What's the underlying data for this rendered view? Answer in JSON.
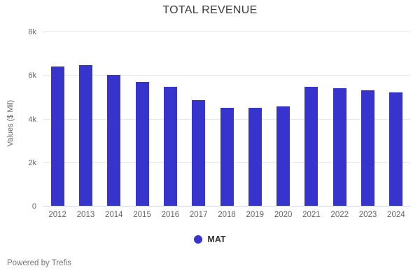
{
  "chart": {
    "title": "TOTAL REVENUE",
    "ylabel": "Values ($ Mil)",
    "legend_label": "MAT",
    "accent_color": "#3733cd",
    "gridline_color": "#e6e6e6",
    "axis_line_color": "#ccd6eb"
  },
  "chart_data": {
    "type": "bar",
    "title": "TOTAL REVENUE",
    "xlabel": "",
    "ylabel": "Values ($ Mil)",
    "categories": [
      "2012",
      "2013",
      "2014",
      "2015",
      "2016",
      "2017",
      "2018",
      "2019",
      "2020",
      "2021",
      "2022",
      "2023",
      "2024"
    ],
    "series": [
      {
        "name": "MAT",
        "color": "#3733cd",
        "values": [
          6400,
          6450,
          6000,
          5700,
          5450,
          4850,
          4500,
          4500,
          4550,
          5450,
          5400,
          5300,
          5200
        ]
      }
    ],
    "ylim": [
      0,
      8000
    ],
    "yticks": [
      {
        "value": 0,
        "label": "0"
      },
      {
        "value": 2000,
        "label": "2k"
      },
      {
        "value": 4000,
        "label": "4k"
      },
      {
        "value": 6000,
        "label": "6k"
      },
      {
        "value": 8000,
        "label": "8k"
      }
    ],
    "grid": true,
    "legend_position": "bottom"
  },
  "footer": {
    "text": "Powered by Trefis"
  }
}
